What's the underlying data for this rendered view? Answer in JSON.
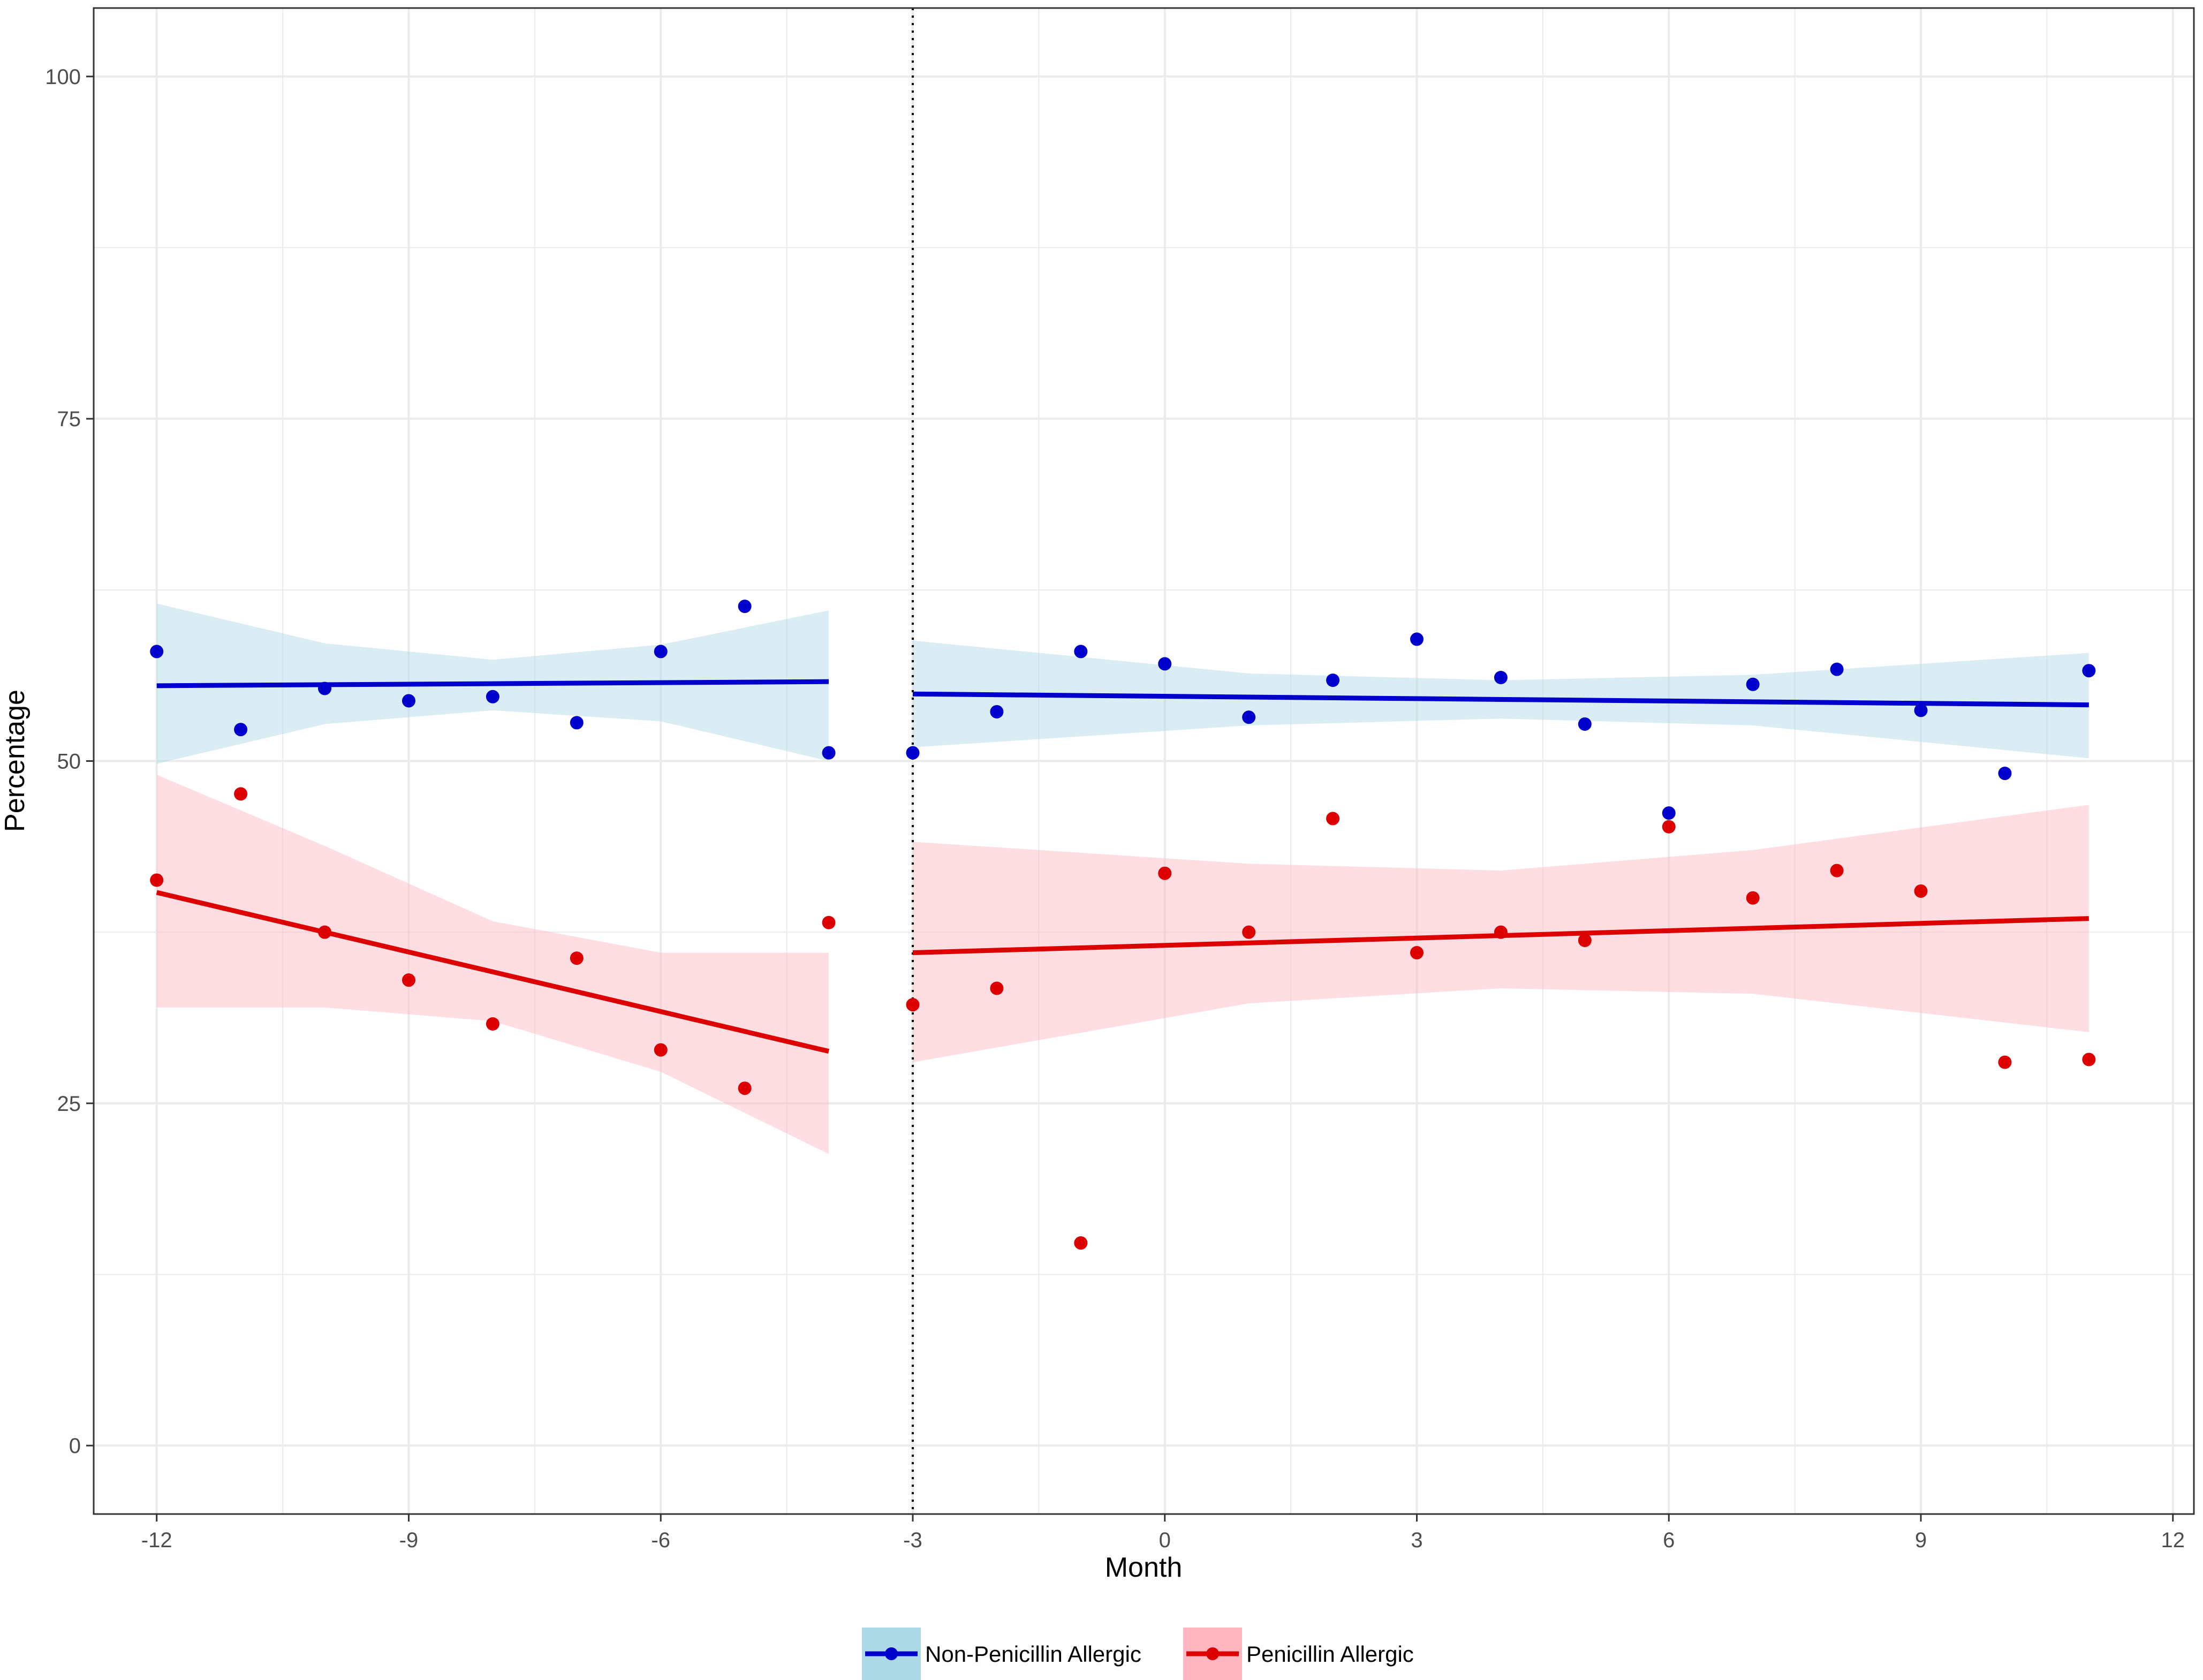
{
  "chart_data": {
    "type": "scatter",
    "title": "",
    "xlabel": "Month",
    "ylabel": "Percentage",
    "xlim": [
      -12.75,
      12.25
    ],
    "ylim": [
      -5,
      105
    ],
    "x_ticks": [
      -12,
      -9,
      -6,
      -3,
      0,
      3,
      6,
      9,
      12
    ],
    "x_tick_labels": [
      "-12",
      "-9",
      "-6",
      "-3",
      "0",
      "3",
      "6",
      "9",
      "12"
    ],
    "y_ticks": [
      0,
      25,
      50,
      75,
      100
    ],
    "y_tick_labels": [
      "0",
      "25",
      "50",
      "75",
      "100"
    ],
    "grid": true,
    "intervention_line_x": -3,
    "legend_position": "bottom",
    "colors": {
      "non_penicillin_line": "#0000CC",
      "non_penicillin_band": "#ADD8E6",
      "penicillin_line": "#DD0000",
      "penicillin_band": "#FFB6C1",
      "grid": "#EBEBEB",
      "panel_border": "#333333"
    },
    "series": [
      {
        "name": "Non-Penicillin Allergic",
        "color": "#0000CC",
        "points": [
          {
            "x": -12,
            "y": 58.0
          },
          {
            "x": -11,
            "y": 52.3
          },
          {
            "x": -10,
            "y": 55.3
          },
          {
            "x": -9,
            "y": 54.4
          },
          {
            "x": -8,
            "y": 54.7
          },
          {
            "x": -7,
            "y": 52.8
          },
          {
            "x": -6,
            "y": 58.0
          },
          {
            "x": -5,
            "y": 61.3
          },
          {
            "x": -4,
            "y": 50.6
          },
          {
            "x": -3,
            "y": 50.6
          },
          {
            "x": -2,
            "y": 53.6
          },
          {
            "x": -1,
            "y": 58.0
          },
          {
            "x": 0,
            "y": 57.1
          },
          {
            "x": 1,
            "y": 53.2
          },
          {
            "x": 2,
            "y": 55.9
          },
          {
            "x": 3,
            "y": 58.9
          },
          {
            "x": 4,
            "y": 56.1
          },
          {
            "x": 5,
            "y": 52.7
          },
          {
            "x": 6,
            "y": 46.2
          },
          {
            "x": 7,
            "y": 55.6
          },
          {
            "x": 8,
            "y": 56.7
          },
          {
            "x": 9,
            "y": 53.7
          },
          {
            "x": 10,
            "y": 49.1
          },
          {
            "x": 11,
            "y": 56.6
          }
        ],
        "fits": [
          {
            "segment": "pre",
            "x": [
              -12,
              -4
            ],
            "y": [
              55.5,
              55.8
            ],
            "ci_x": [
              -12,
              -10,
              -8,
              -6,
              -4
            ],
            "ci_lower": [
              49.8,
              52.7,
              53.7,
              52.9,
              50.0
            ],
            "ci_upper": [
              61.5,
              58.6,
              57.4,
              58.5,
              61.0
            ]
          },
          {
            "segment": "post",
            "x": [
              -3,
              11
            ],
            "y": [
              54.9,
              54.1
            ],
            "ci_x": [
              -3,
              1,
              4,
              7,
              11
            ],
            "ci_lower": [
              51.0,
              52.6,
              53.1,
              52.6,
              50.2
            ],
            "ci_upper": [
              58.8,
              56.4,
              55.9,
              56.3,
              57.9
            ]
          }
        ]
      },
      {
        "name": "Penicillin Allergic",
        "color": "#DD0000",
        "points": [
          {
            "x": -12,
            "y": 41.3
          },
          {
            "x": -11,
            "y": 47.6
          },
          {
            "x": -10,
            "y": 37.5
          },
          {
            "x": -9,
            "y": 34.0
          },
          {
            "x": -8,
            "y": 30.8
          },
          {
            "x": -7,
            "y": 35.6
          },
          {
            "x": -6,
            "y": 28.9
          },
          {
            "x": -5,
            "y": 26.1
          },
          {
            "x": -4,
            "y": 38.2
          },
          {
            "x": -3,
            "y": 32.2
          },
          {
            "x": -2,
            "y": 33.4
          },
          {
            "x": -1,
            "y": 14.8
          },
          {
            "x": 0,
            "y": 41.8
          },
          {
            "x": 1,
            "y": 37.5
          },
          {
            "x": 2,
            "y": 45.8
          },
          {
            "x": 3,
            "y": 36.0
          },
          {
            "x": 4,
            "y": 37.5
          },
          {
            "x": 5,
            "y": 36.9
          },
          {
            "x": 6,
            "y": 45.2
          },
          {
            "x": 7,
            "y": 40.0
          },
          {
            "x": 8,
            "y": 42.0
          },
          {
            "x": 9,
            "y": 40.5
          },
          {
            "x": 10,
            "y": 28.0
          },
          {
            "x": 11,
            "y": 28.2
          }
        ],
        "fits": [
          {
            "segment": "pre",
            "x": [
              -12,
              -4
            ],
            "y": [
              40.4,
              28.8
            ],
            "ci_x": [
              -12,
              -10,
              -8,
              -6,
              -4
            ],
            "ci_lower": [
              32.0,
              32.0,
              31.0,
              27.3,
              21.3
            ],
            "ci_upper": [
              49.0,
              43.8,
              38.3,
              36.0,
              36.0
            ]
          },
          {
            "segment": "post",
            "x": [
              -3,
              11
            ],
            "y": [
              36.0,
              38.5
            ],
            "ci_x": [
              -3,
              1,
              4,
              7,
              11
            ],
            "ci_lower": [
              28.0,
              32.3,
              33.4,
              33.0,
              30.2
            ],
            "ci_upper": [
              44.1,
              42.5,
              42.0,
              43.5,
              46.8
            ]
          }
        ]
      }
    ]
  }
}
